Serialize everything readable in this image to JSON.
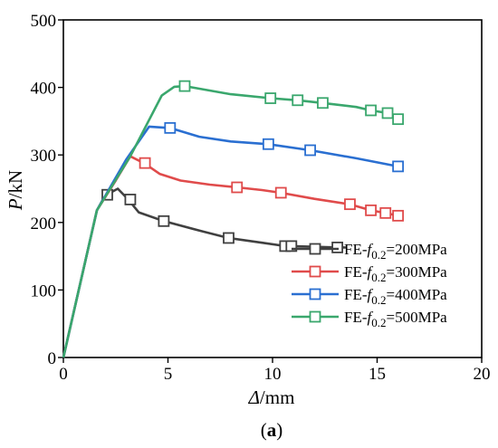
{
  "chart_data": {
    "type": "line",
    "xlabel": {
      "symbol": "Δ",
      "unit": "/mm"
    },
    "ylabel": {
      "symbol": "P",
      "unit": "/kN"
    },
    "xlim": [
      0,
      20
    ],
    "ylim": [
      0,
      500
    ],
    "xticks": [
      0,
      5,
      10,
      15,
      20
    ],
    "yticks": [
      0,
      100,
      200,
      300,
      400,
      500
    ],
    "grid": false,
    "legend_position": "lower-right",
    "caption": {
      "open": "(",
      "letter": "a",
      "close": ")"
    },
    "series": [
      {
        "name": {
          "prefix": "FE-",
          "var": "f",
          "sub": "0.2",
          "suffix": "=200MPa"
        },
        "color": "#404040",
        "points": [
          [
            0,
            0
          ],
          [
            1.6,
            218
          ],
          [
            2.0,
            240
          ],
          [
            2.6,
            250
          ],
          [
            3.1,
            234
          ],
          [
            3.6,
            215
          ],
          [
            4.8,
            202
          ],
          [
            6.5,
            188
          ],
          [
            7.9,
            177
          ],
          [
            9.5,
            170
          ],
          [
            10.6,
            165
          ],
          [
            10.9,
            165
          ],
          [
            13.1,
            163
          ],
          [
            13.5,
            163
          ]
        ],
        "markers": [
          [
            2.1,
            241
          ],
          [
            3.2,
            234
          ],
          [
            4.8,
            202
          ],
          [
            7.9,
            177
          ],
          [
            10.6,
            165
          ],
          [
            10.9,
            165
          ],
          [
            13.1,
            163
          ]
        ]
      },
      {
        "name": {
          "prefix": "FE-",
          "var": "f",
          "sub": "0.2",
          "suffix": "=300MPa"
        },
        "color": "#e04b4b",
        "points": [
          [
            0,
            0
          ],
          [
            1.6,
            218
          ],
          [
            2.5,
            262
          ],
          [
            3.2,
            298
          ],
          [
            3.9,
            287
          ],
          [
            4.6,
            272
          ],
          [
            5.6,
            262
          ],
          [
            7.0,
            256
          ],
          [
            8.3,
            252
          ],
          [
            9.5,
            248
          ],
          [
            10.4,
            244
          ],
          [
            12.0,
            235
          ],
          [
            13.7,
            227
          ],
          [
            14.7,
            218
          ],
          [
            15.4,
            214
          ],
          [
            16.0,
            210
          ]
        ],
        "markers": [
          [
            3.9,
            288
          ],
          [
            8.3,
            252
          ],
          [
            10.4,
            244
          ],
          [
            13.7,
            227
          ],
          [
            14.7,
            218
          ],
          [
            15.4,
            214
          ],
          [
            16.0,
            210
          ]
        ]
      },
      {
        "name": {
          "prefix": "FE-",
          "var": "f",
          "sub": "0.2",
          "suffix": "=400MPa"
        },
        "color": "#2a6fd1",
        "points": [
          [
            0,
            0
          ],
          [
            1.6,
            218
          ],
          [
            3.0,
            293
          ],
          [
            4.1,
            342
          ],
          [
            5.1,
            340
          ],
          [
            6.5,
            327
          ],
          [
            8.0,
            320
          ],
          [
            9.8,
            316
          ],
          [
            11.8,
            307
          ],
          [
            14.0,
            295
          ],
          [
            16.0,
            283
          ]
        ],
        "markers": [
          [
            5.1,
            340
          ],
          [
            9.8,
            316
          ],
          [
            11.8,
            307
          ],
          [
            16.0,
            283
          ]
        ]
      },
      {
        "name": {
          "prefix": "FE-",
          "var": "f",
          "sub": "0.2",
          "suffix": "=500MPa"
        },
        "color": "#3aa76d",
        "points": [
          [
            0,
            0
          ],
          [
            1.6,
            218
          ],
          [
            3.2,
            298
          ],
          [
            4.7,
            388
          ],
          [
            5.3,
            401
          ],
          [
            5.8,
            402
          ],
          [
            8.0,
            390
          ],
          [
            9.9,
            384
          ],
          [
            11.2,
            381
          ],
          [
            12.4,
            377
          ],
          [
            14.0,
            371
          ],
          [
            14.7,
            366
          ],
          [
            15.5,
            362
          ],
          [
            16.0,
            353
          ]
        ],
        "markers": [
          [
            5.8,
            402
          ],
          [
            9.9,
            384
          ],
          [
            11.2,
            381
          ],
          [
            12.4,
            377
          ],
          [
            14.7,
            366
          ],
          [
            15.5,
            362
          ],
          [
            16.0,
            353
          ]
        ]
      }
    ]
  }
}
